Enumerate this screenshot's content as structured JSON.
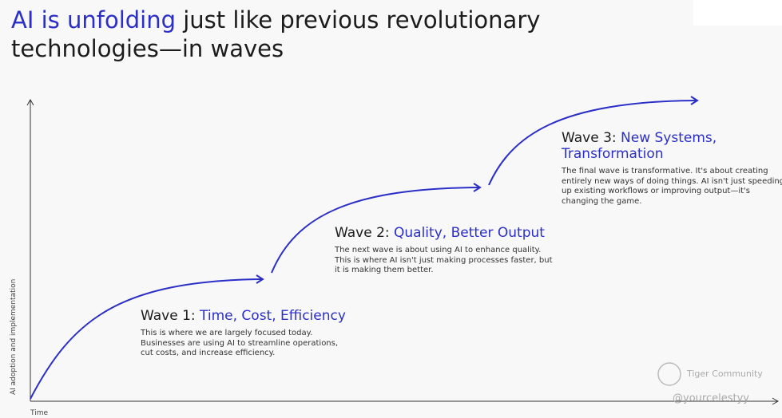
{
  "header": {
    "title_highlight": "AI is unfolding",
    "title_rest": "just like previous revolutionary",
    "title_line2": "technologies—in waves"
  },
  "axes": {
    "y_label": "AI adoption and implementation",
    "x_label": "Time"
  },
  "waves": [
    {
      "label": "Wave 1:",
      "highlight": "Time, Cost, Efficiency",
      "description": [
        "This is where we are largely focused today.",
        "Businesses are using AI to streamline operations,",
        "cut costs, and increase efficiency."
      ]
    },
    {
      "label": "Wave 2:",
      "highlight": "Quality, Better Output",
      "description": [
        "The next wave is about using AI to enhance quality.",
        "This is where AI isn't just making processes faster, but",
        "it is making them better."
      ]
    },
    {
      "label": "Wave 3:",
      "highlight": "New Systems, Transformation",
      "description": [
        "The final wave is transformative. It's about creating",
        "entirely new ways of doing things. AI isn't just speeding",
        "up existing workflows or improving output—it's",
        "changing the game."
      ]
    }
  ],
  "watermark": {
    "brand": "Tiger Community",
    "handle": "@yourcelestyy"
  }
}
